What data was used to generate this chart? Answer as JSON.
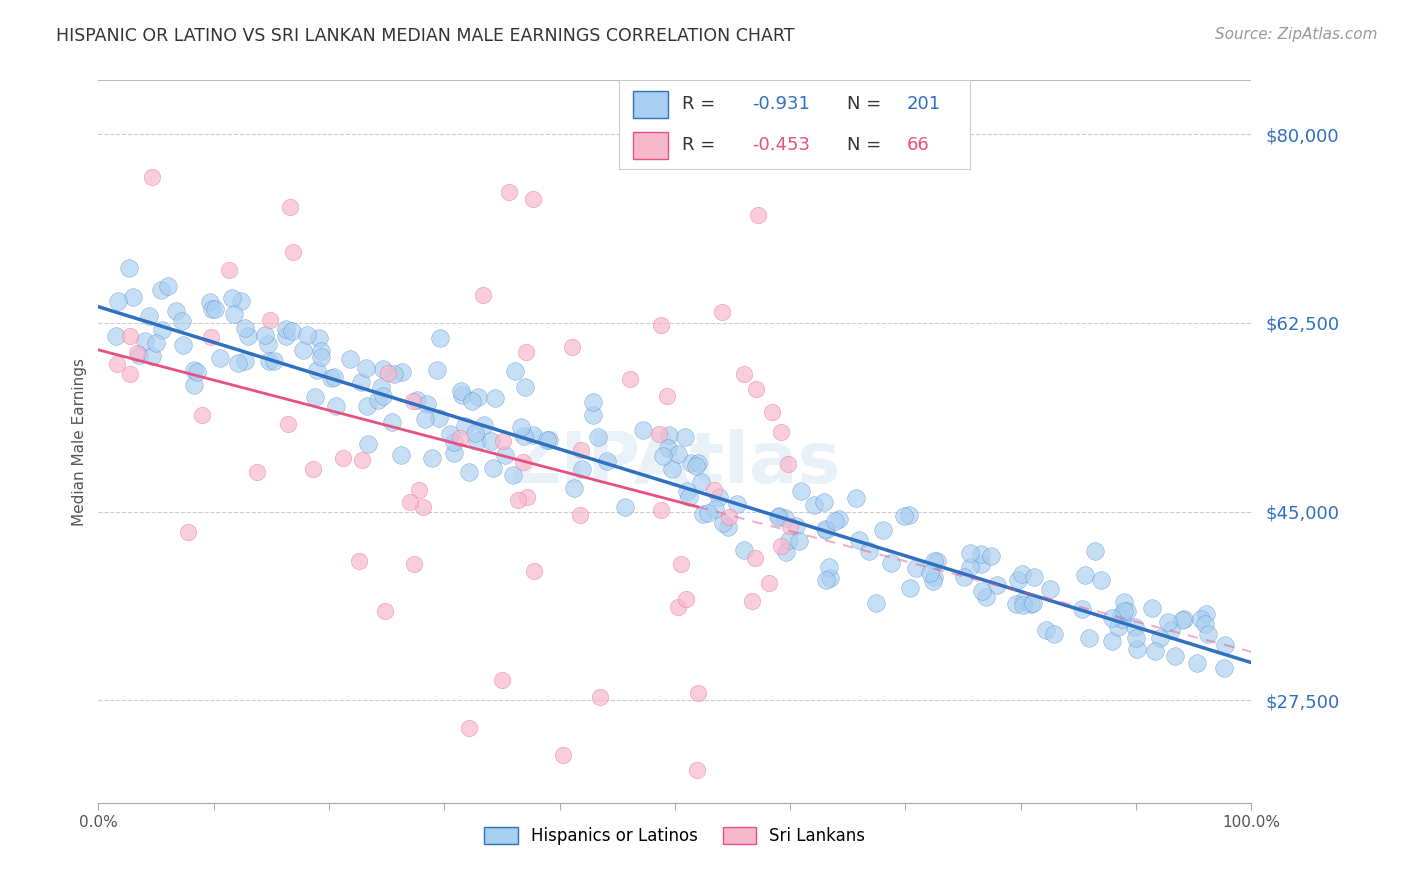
{
  "title": "HISPANIC OR LATINO VS SRI LANKAN MEDIAN MALE EARNINGS CORRELATION CHART",
  "source": "Source: ZipAtlas.com",
  "ylabel": "Median Male Earnings",
  "yticks": [
    27500,
    45000,
    62500,
    80000
  ],
  "ytick_labels": [
    "$27,500",
    "$45,000",
    "$62,500",
    "$80,000"
  ],
  "xmin": 0.0,
  "xmax": 100.0,
  "ymin": 18000,
  "ymax": 85000,
  "blue_color": "#A8CEF0",
  "blue_line_color": "#3070C0",
  "pink_color": "#F8B8CC",
  "pink_line_color": "#E85080",
  "pink_dash_color": "#F0A0B8",
  "watermark_color": "#C8DCF0",
  "legend_val1": "-0.931",
  "legend_count1": "201",
  "legend_val2": "-0.453",
  "legend_count2": "66",
  "blue_R": -0.931,
  "blue_N": 201,
  "pink_R": -0.453,
  "pink_N": 66,
  "blue_intercept": 64000,
  "blue_slope": -330,
  "pink_intercept": 60000,
  "pink_slope": -280,
  "pink_solid_end": 52,
  "seed": 42,
  "title_fontsize": 12.5,
  "axis_label_fontsize": 11,
  "tick_fontsize": 13,
  "source_fontsize": 11
}
